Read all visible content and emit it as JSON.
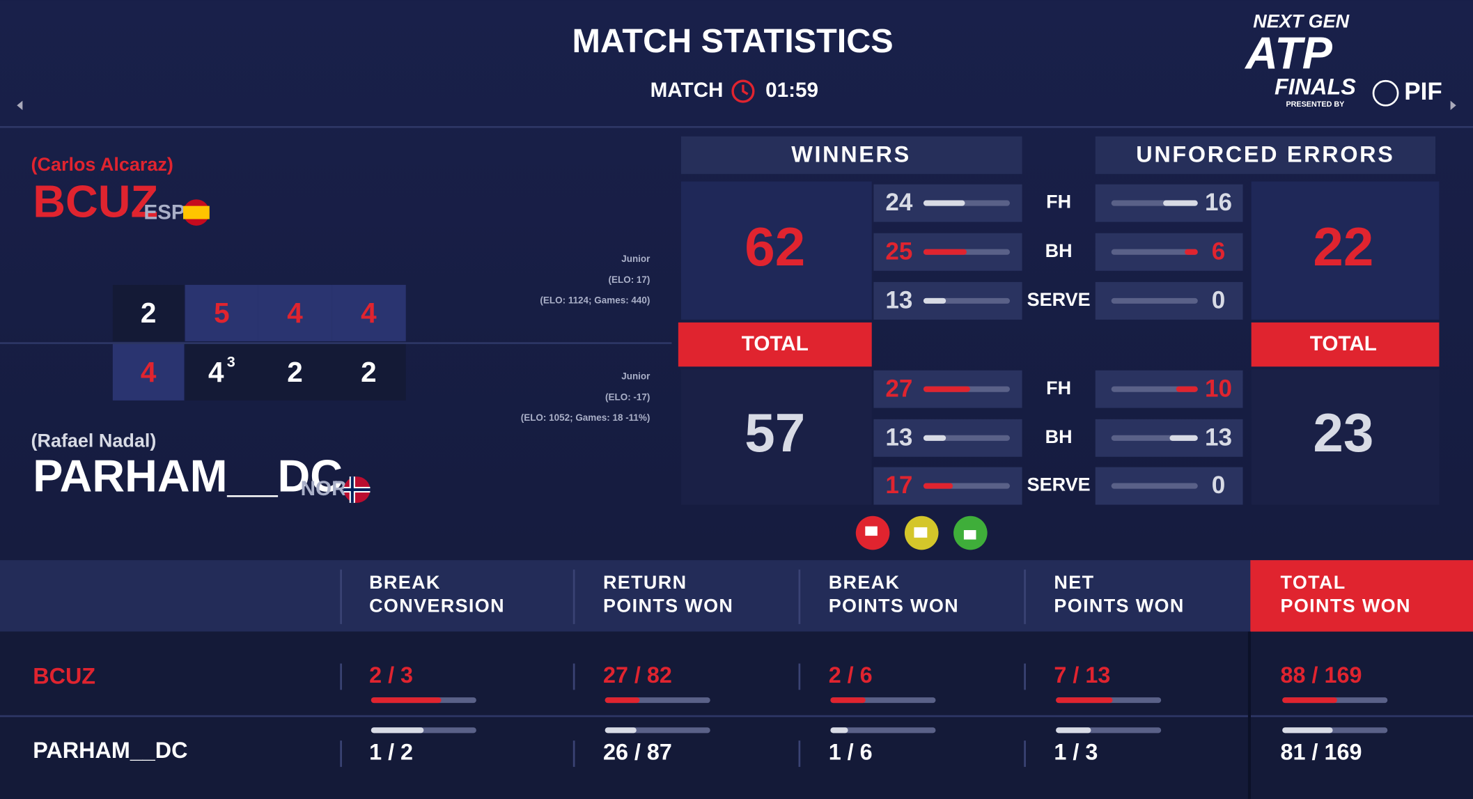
{
  "header": {
    "title": "MATCH STATISTICS",
    "phase": "MATCH",
    "clock": "01:59"
  },
  "logo": {
    "line1": "NEXT GEN",
    "line2": "ATP",
    "line3": "FINALS",
    "presented_by": "PRESENTED BY",
    "sponsor": "PIF"
  },
  "players": [
    {
      "real_name": "(Carlos Alcaraz)",
      "name": "BCUZ",
      "country": "ESP",
      "info": [
        "Junior",
        "(ELO: 17)",
        "(ELO: 1124; Games: 440)"
      ]
    },
    {
      "real_name": "(Rafael Nadal)",
      "name": "PARHAM__DC",
      "country": "NOR",
      "info": [
        "Junior",
        "(ELO: -17)",
        "(ELO: 1052; Games: 18 -11%)"
      ]
    }
  ],
  "score": {
    "sets": [
      {
        "p1": 2,
        "p2": 4
      },
      {
        "p1": 5,
        "p2": 4,
        "p2_tiebreak": 3
      },
      {
        "p1": 4,
        "p2": 2
      },
      {
        "p1": 4,
        "p2": 2
      }
    ]
  },
  "shots": {
    "winners_title": "WINNERS",
    "errors_title": "UNFORCED ERRORS",
    "total_label": "TOTAL",
    "rows": [
      "FH",
      "BH",
      "SERVE"
    ],
    "players": [
      {
        "winners_total": 62,
        "winners": [
          24,
          25,
          13
        ],
        "errors_total": 22,
        "errors": [
          16,
          6,
          0
        ]
      },
      {
        "winners_total": 57,
        "winners": [
          27,
          13,
          17
        ],
        "errors_total": 23,
        "errors": [
          10,
          13,
          0
        ]
      }
    ]
  },
  "table": {
    "columns": [
      [
        "BREAK",
        "CONVERSION"
      ],
      [
        "RETURN",
        "POINTS WON"
      ],
      [
        "BREAK",
        "POINTS WON"
      ],
      [
        "NET",
        "POINTS WON"
      ],
      [
        "TOTAL",
        "POINTS WON"
      ]
    ],
    "rows": [
      {
        "cells": [
          "2 / 3",
          "27 / 82",
          "2 / 6",
          "7 / 13",
          "88 / 169"
        ]
      },
      {
        "cells": [
          "1 / 2",
          "26 / 87",
          "1 / 6",
          "1 / 3",
          "81 / 169"
        ]
      }
    ]
  }
}
